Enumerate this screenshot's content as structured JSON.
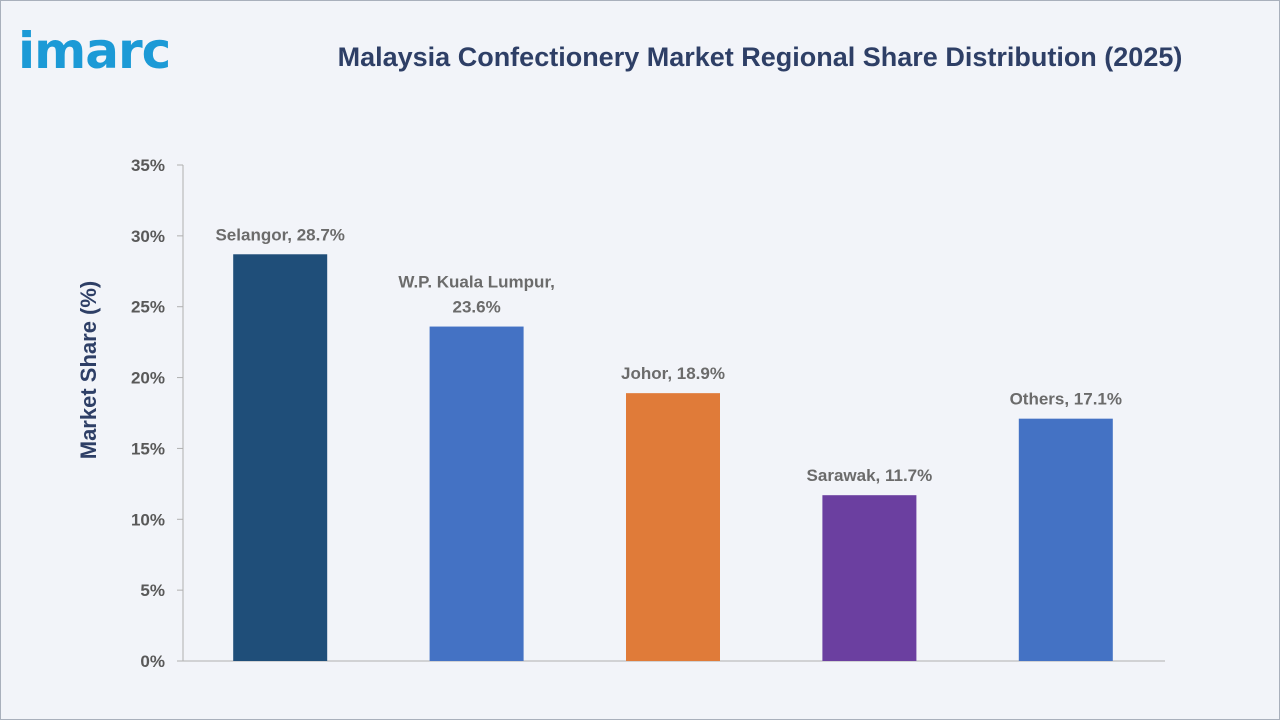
{
  "brand": {
    "logo_text": "imarc",
    "logo_color": "#1c9ad6"
  },
  "chart_data": {
    "type": "bar",
    "title": "Malaysia Confectionery Market Regional Share Distribution (2025)",
    "xlabel": "",
    "ylabel": "Market Share (%)",
    "ylim": [
      0,
      35
    ],
    "yticks": [
      "0%",
      "5%",
      "10%",
      "15%",
      "20%",
      "25%",
      "30%",
      "35%"
    ],
    "ytick_values": [
      0,
      5,
      10,
      15,
      20,
      25,
      30,
      35
    ],
    "grid": false,
    "categories": [
      "Selangor",
      "W.P. Kuala Lumpur",
      "Johor",
      "Sarawak",
      "Others"
    ],
    "values": [
      28.7,
      23.6,
      18.9,
      11.7,
      17.1
    ],
    "data_labels": [
      [
        "Selangor, 28.7%"
      ],
      [
        "W.P. Kuala Lumpur,",
        "23.6%"
      ],
      [
        "Johor, 18.9%"
      ],
      [
        "Sarawak, 11.7%"
      ],
      [
        "Others, 17.1%"
      ]
    ],
    "colors": [
      "#1f4e79",
      "#4472c4",
      "#e07b39",
      "#6b3fa0",
      "#4472c4"
    ]
  }
}
